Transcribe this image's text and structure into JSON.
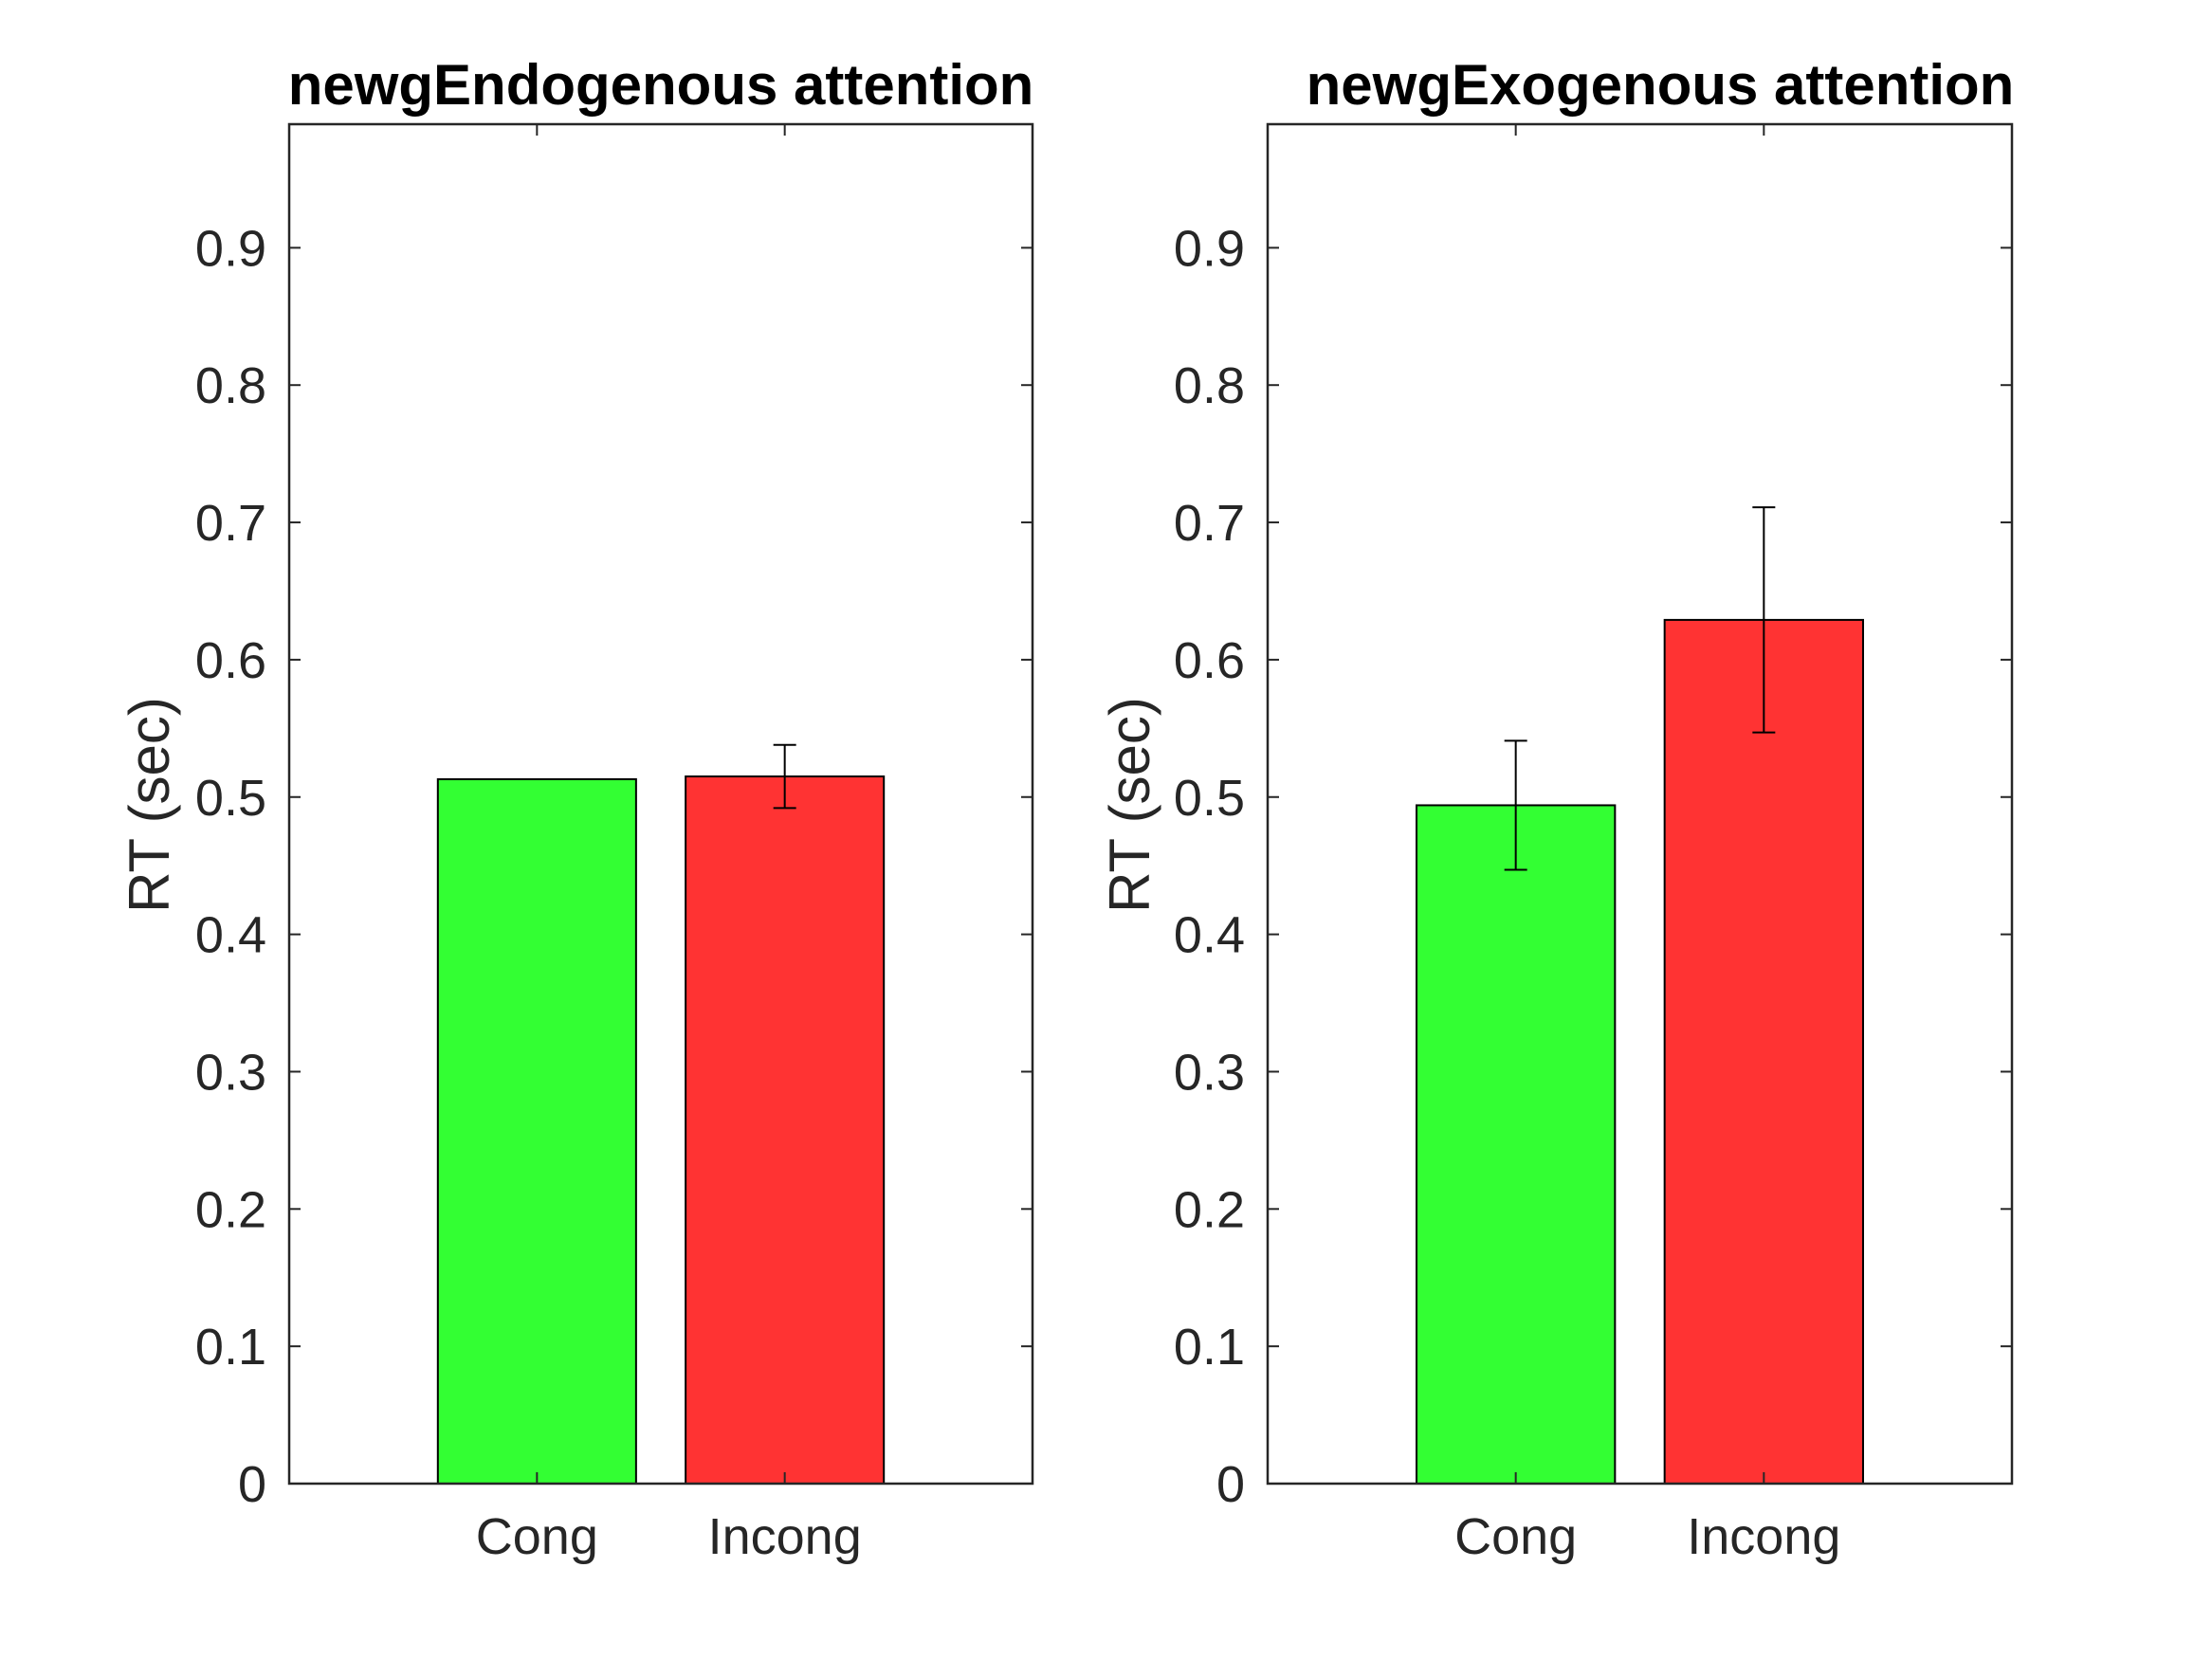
{
  "chart_data": [
    {
      "type": "bar",
      "title": "newgEndogenous attention",
      "xlabel": "",
      "ylabel": "RT (sec)",
      "categories": [
        "Cong",
        "Incong"
      ],
      "values": [
        0.513,
        0.515
      ],
      "error_bars": [
        null,
        0.023
      ],
      "bar_colors": [
        "#33ff33",
        "#ff3333"
      ],
      "ylim": [
        0,
        0.99
      ],
      "yticks": [
        "0",
        "0.1",
        "0.2",
        "0.3",
        "0.4",
        "0.5",
        "0.6",
        "0.7",
        "0.8",
        "0.9"
      ],
      "grid": false,
      "legend": "none"
    },
    {
      "type": "bar",
      "title": "newgExogenous attention",
      "xlabel": "",
      "ylabel": "RT (sec)",
      "categories": [
        "Cong",
        "Incong"
      ],
      "values": [
        0.494,
        0.629
      ],
      "error_bars": [
        0.047,
        0.082
      ],
      "bar_colors": [
        "#33ff33",
        "#ff3333"
      ],
      "ylim": [
        0,
        0.99
      ],
      "yticks": [
        "0",
        "0.1",
        "0.2",
        "0.3",
        "0.4",
        "0.5",
        "0.6",
        "0.7",
        "0.8",
        "0.9"
      ],
      "grid": false,
      "legend": "none"
    }
  ],
  "colors": {
    "axis": "#262626",
    "edge": "#000000"
  }
}
